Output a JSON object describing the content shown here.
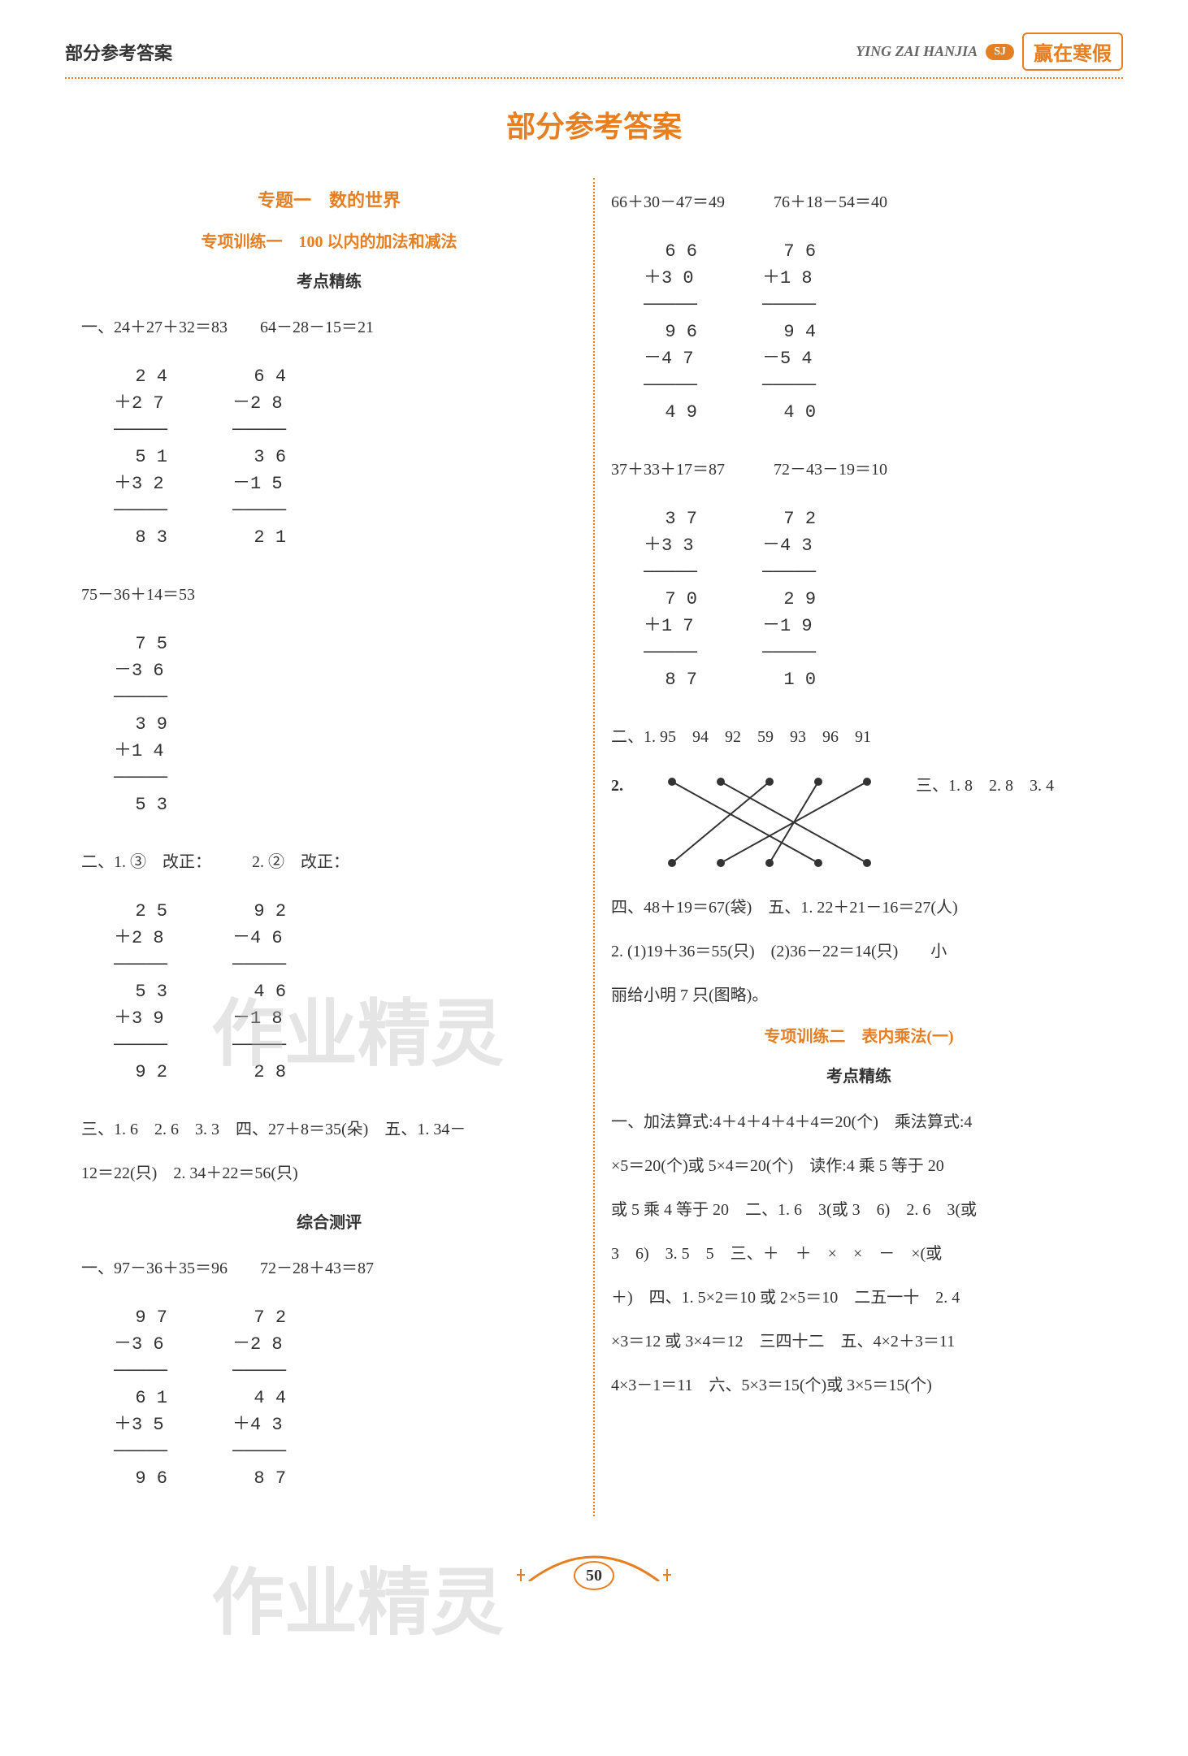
{
  "header": {
    "left": "部分参考答案",
    "pinyin": "YING ZAI HANJIA",
    "sj": "SJ",
    "brand": "赢在寒假"
  },
  "main_title": "部分参考答案",
  "left": {
    "topic": "专题一　数的世界",
    "sub": "专项训练一　100 以内的加法和减法",
    "kdjl": "考点精练",
    "p1_line1": "一、24＋27＋32＝83　　64－28－15＝21",
    "calc1a": "  2 4\n＋2 7\n─────\n  5 1\n＋3 2\n─────\n  8 3",
    "calc1b": "  6 4\n－2 8\n─────\n  3 6\n－1 5\n─────\n  2 1",
    "p1_line2": "75－36＋14＝53",
    "calc2": "  7 5\n－3 6\n─────\n  3 9\n＋1 4\n─────\n  5 3",
    "p2_line1": "二、1. ③　改正：　　　2. ②　改正：",
    "calc3a": "  2 5\n＋2 8\n─────\n  5 3\n＋3 9\n─────\n  9 2",
    "calc3b": "  9 2\n－4 6\n─────\n  4 6\n－1 8\n─────\n  2 8",
    "p3_line1": "三、1. 6　2. 6　3. 3　四、27＋8＝35(朵)　五、1. 34－",
    "p3_line2": "12＝22(只)　2. 34＋22＝56(只)",
    "zhcp": "综合测评",
    "p4_line1": "一、97－36＋35＝96　　72－28＋43＝87",
    "calc4a": "  9 7\n－3 6\n─────\n  6 1\n＋3 5\n─────\n  9 6",
    "calc4b": "  7 2\n－2 8\n─────\n  4 4\n＋4 3\n─────\n  8 7"
  },
  "right": {
    "r1": "66＋30－47＝49　　　76＋18－54＝40",
    "calc5a": "  6 6\n＋3 0\n─────\n  9 6\n－4 7\n─────\n  4 9",
    "calc5b": "  7 6\n＋1 8\n─────\n  9 4\n－5 4\n─────\n  4 0",
    "r2": "37＋33＋17＝87　　　72－43－19＝10",
    "calc6a": "  3 7\n＋3 3\n─────\n  7 0\n＋1 7\n─────\n  8 7",
    "calc6b": "  7 2\n－4 3\n─────\n  2 9\n－1 9\n─────\n  1 0",
    "r3": "二、1. 95　94　92　59　93　96　91",
    "r4_left": "2.",
    "r4_right": "三、1. 8　2. 8　3. 4",
    "r5": "四、48＋19＝67(袋)　五、1. 22＋21－16＝27(人)",
    "r6": "2. (1)19＋36＝55(只)　(2)36－22＝14(只)　　小",
    "r7": "丽给小明 7 只(图略)。",
    "sub2": "专项训练二　表内乘法(一)",
    "kdjl2": "考点精练",
    "r8": "一、加法算式:4＋4＋4＋4＋4＝20(个)　乘法算式:4",
    "r9": "×5＝20(个)或 5×4＝20(个)　读作:4 乘 5 等于 20",
    "r10": "或 5 乘 4 等于 20　二、1. 6　3(或 3　6)　2. 6　3(或",
    "r11": "3　6)　3. 5　5　三、＋　＋　×　×　－　×(或",
    "r12": "＋)　四、1. 5×2＝10 或 2×5＝10　二五一十　2. 4",
    "r13": "×3＝12 或 3×4＝12　三四十二　五、4×2＋3＝11",
    "r14": "4×3－1＝11　六、5×3＝15(个)或 3×5＝15(个)"
  },
  "match": {
    "top_x": [
      40,
      100,
      160,
      220,
      280
    ],
    "bot_x": [
      40,
      100,
      160,
      220,
      280
    ],
    "edges": [
      [
        0,
        3
      ],
      [
        1,
        4
      ],
      [
        2,
        0
      ],
      [
        3,
        2
      ],
      [
        4,
        1
      ]
    ],
    "dot_color": "#333",
    "line_color": "#333"
  },
  "watermark": "作业精灵",
  "page_num": "50"
}
